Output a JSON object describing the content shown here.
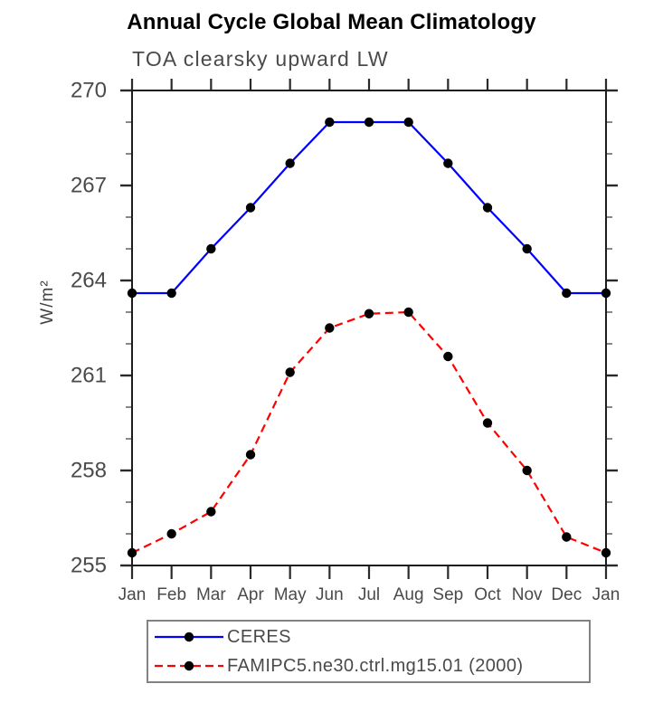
{
  "title": "Annual Cycle Global Mean Climatology",
  "subtitle": "TOA clearsky upward LW",
  "chart_data": {
    "type": "line",
    "x_categories": [
      "Jan",
      "Feb",
      "Mar",
      "Apr",
      "May",
      "Jun",
      "Jul",
      "Aug",
      "Sep",
      "Oct",
      "Nov",
      "Dec",
      "Jan"
    ],
    "ylabel": "W/m²",
    "ylim": [
      255,
      270
    ],
    "ytick_major": [
      255,
      258,
      261,
      264,
      267,
      270
    ],
    "ytick_minor_step": 1,
    "grid": false,
    "legend_position": "bottom",
    "marker": "filled-circle",
    "marker_color": "#000000",
    "frame_color": "#1c1c1c",
    "tick_label_color": "#4a4a4a",
    "series": [
      {
        "name": "CERES",
        "color": "#0000ff",
        "style": "solid",
        "values": [
          263.6,
          263.6,
          265.0,
          266.3,
          267.7,
          269.0,
          269.0,
          269.0,
          267.7,
          266.3,
          265.0,
          263.6,
          263.6
        ]
      },
      {
        "name": "FAMIPC5.ne30.ctrl.mg15.01 (2000)",
        "color": "#ff0000",
        "style": "dashed",
        "values": [
          255.4,
          256.0,
          256.7,
          258.5,
          261.1,
          262.5,
          262.95,
          263.0,
          261.6,
          259.5,
          258.0,
          255.9,
          255.4
        ]
      }
    ]
  }
}
